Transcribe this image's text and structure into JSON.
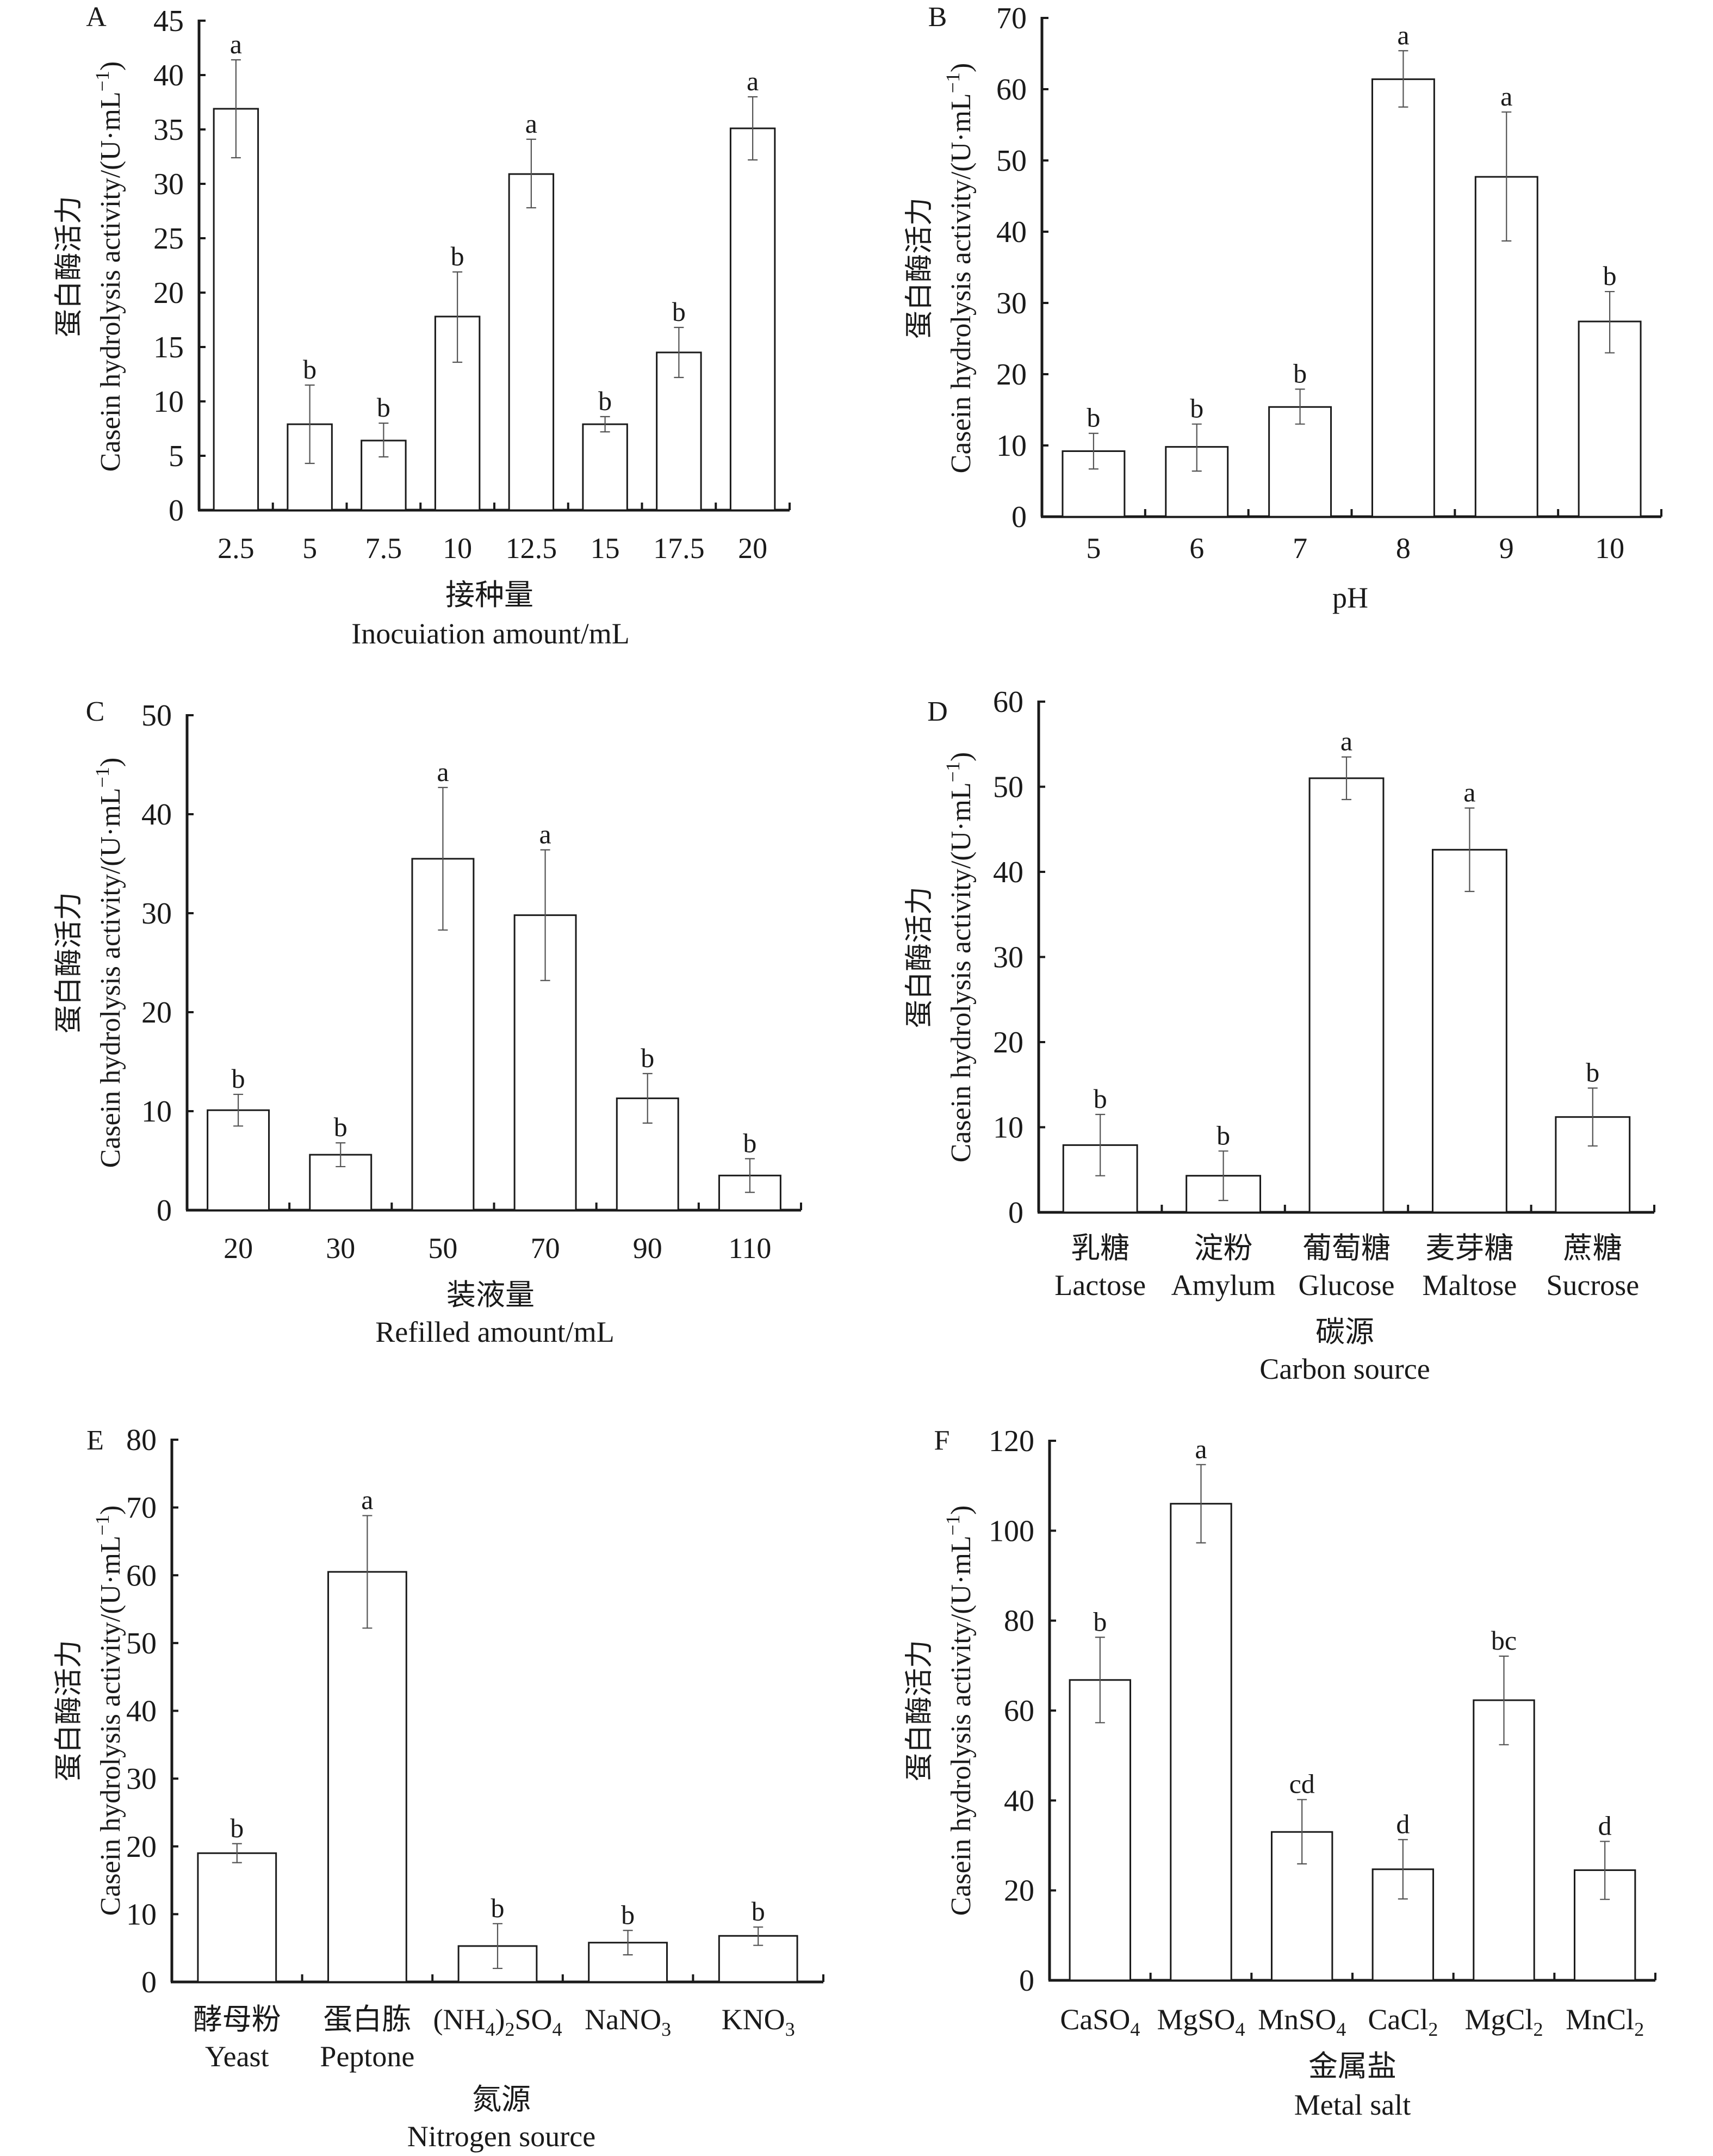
{
  "figure": {
    "y_title_cn": "蛋白酶活力",
    "y_title_en": "Casein hydrolysis activity/(U·mL",
    "y_title_sup": "−1",
    "y_title_close": ")"
  },
  "chart_data": [
    {
      "type": "bar",
      "panel": "A",
      "title": "",
      "xlabel_cn": "接种量",
      "xlabel": "Inocuiation amount/mL",
      "ylabel": "蛋白酶活力 Casein hydrolysis activity/(U·mL⁻¹)",
      "categories": [
        {
          "cn": "",
          "en": "2.5"
        },
        {
          "cn": "",
          "en": "5"
        },
        {
          "cn": "",
          "en": "7.5"
        },
        {
          "cn": "",
          "en": "10"
        },
        {
          "cn": "",
          "en": "12.5"
        },
        {
          "cn": "",
          "en": "15"
        },
        {
          "cn": "",
          "en": "17.5"
        },
        {
          "cn": "",
          "en": "20"
        }
      ],
      "values": [
        36.9,
        7.9,
        6.4,
        17.8,
        30.9,
        7.9,
        14.5,
        35.1
      ],
      "error_low": [
        32.4,
        4.3,
        4.9,
        13.6,
        27.8,
        7.2,
        12.2,
        32.2
      ],
      "error_high": [
        41.4,
        11.5,
        8.0,
        21.9,
        34.1,
        8.6,
        16.8,
        38.0
      ],
      "significance": [
        "a",
        "b",
        "b",
        "b",
        "a",
        "b",
        "b",
        "a"
      ],
      "ylim": [
        0,
        45
      ],
      "yticks": [
        "0",
        "5",
        "10",
        "15",
        "20",
        "25",
        "30",
        "35",
        "40",
        "45"
      ],
      "ytick_values": [
        0,
        5,
        10,
        15,
        20,
        25,
        30,
        35,
        40,
        45
      ],
      "grid": false
    },
    {
      "type": "bar",
      "panel": "B",
      "title": "",
      "xlabel_cn": "",
      "xlabel": "pH",
      "ylabel": "蛋白酶活力 Casein hydrolysis activity/(U·mL⁻¹)",
      "categories": [
        {
          "cn": "",
          "en": "5"
        },
        {
          "cn": "",
          "en": "6"
        },
        {
          "cn": "",
          "en": "7"
        },
        {
          "cn": "",
          "en": "8"
        },
        {
          "cn": "",
          "en": "9"
        },
        {
          "cn": "",
          "en": "10"
        }
      ],
      "values": [
        9.2,
        9.8,
        15.4,
        61.4,
        47.7,
        27.4
      ],
      "error_low": [
        6.7,
        6.4,
        13.0,
        57.5,
        38.7,
        23.0
      ],
      "error_high": [
        11.7,
        13.0,
        17.9,
        65.4,
        56.8,
        31.6
      ],
      "significance": [
        "b",
        "b",
        "b",
        "a",
        "a",
        "b"
      ],
      "ylim": [
        0,
        70
      ],
      "yticks": [
        "0",
        "10",
        "20",
        "30",
        "40",
        "50",
        "60",
        "70"
      ],
      "ytick_values": [
        0,
        10,
        20,
        30,
        40,
        50,
        60,
        70
      ],
      "grid": false
    },
    {
      "type": "bar",
      "panel": "C",
      "title": "",
      "xlabel_cn": "装液量",
      "xlabel": "Refilled amount/mL",
      "ylabel": "蛋白酶活力 Casein hydrolysis activity/(U·mL⁻¹)",
      "categories": [
        {
          "cn": "",
          "en": "20"
        },
        {
          "cn": "",
          "en": "30"
        },
        {
          "cn": "",
          "en": "50"
        },
        {
          "cn": "",
          "en": "70"
        },
        {
          "cn": "",
          "en": "90"
        },
        {
          "cn": "",
          "en": "110"
        }
      ],
      "values": [
        10.1,
        5.6,
        35.5,
        29.8,
        11.3,
        3.5
      ],
      "error_low": [
        8.5,
        4.4,
        28.3,
        23.2,
        8.8,
        1.8
      ],
      "error_high": [
        11.7,
        6.8,
        42.7,
        36.4,
        13.8,
        5.2
      ],
      "significance": [
        "b",
        "b",
        "a",
        "a",
        "b",
        "b"
      ],
      "ylim": [
        0,
        50
      ],
      "yticks": [
        "0",
        "10",
        "20",
        "30",
        "40",
        "50"
      ],
      "ytick_values": [
        0,
        10,
        20,
        30,
        40,
        50
      ],
      "grid": false
    },
    {
      "type": "bar",
      "panel": "D",
      "title": "",
      "xlabel_cn": "碳源",
      "xlabel": "Carbon source",
      "ylabel": "蛋白酶活力 Casein hydrolysis activity/(U·mL⁻¹)",
      "categories": [
        {
          "cn": "乳糖",
          "en": "Lactose"
        },
        {
          "cn": "淀粉",
          "en": "Amylum"
        },
        {
          "cn": "葡萄糖",
          "en": "Glucose"
        },
        {
          "cn": "麦芽糖",
          "en": "Maltose"
        },
        {
          "cn": "蔗糖",
          "en": "Sucrose"
        }
      ],
      "values": [
        7.9,
        4.3,
        51.0,
        42.6,
        11.2
      ],
      "error_low": [
        4.3,
        1.4,
        48.5,
        37.7,
        7.8
      ],
      "error_high": [
        11.5,
        7.2,
        53.5,
        47.5,
        14.6
      ],
      "significance": [
        "b",
        "b",
        "a",
        "a",
        "b"
      ],
      "ylim": [
        0,
        60
      ],
      "yticks": [
        "0",
        "10",
        "20",
        "30",
        "40",
        "50",
        "60"
      ],
      "ytick_values": [
        0,
        10,
        20,
        30,
        40,
        50,
        60
      ],
      "grid": false
    },
    {
      "type": "bar",
      "panel": "E",
      "title": "",
      "xlabel_cn": "氮源",
      "xlabel": "Nitrogen source",
      "ylabel": "蛋白酶活力 Casein hydrolysis activity/(U·mL⁻¹)",
      "categories": [
        {
          "cn": "酵母粉",
          "en": "Yeast"
        },
        {
          "cn": "蛋白胨",
          "en": "Peptone"
        },
        {
          "cn": "",
          "en": "(NH4)2SO4",
          "formula": [
            [
              "(NH",
              ""
            ],
            [
              "4",
              "sub"
            ],
            [
              ")",
              ""
            ],
            [
              "2",
              "sub"
            ],
            [
              "SO",
              ""
            ],
            [
              "4",
              "sub"
            ]
          ]
        },
        {
          "cn": "",
          "en": "NaNO3",
          "formula": [
            [
              "NaNO",
              ""
            ],
            [
              "3",
              "sub"
            ]
          ]
        },
        {
          "cn": "",
          "en": "KNO3",
          "formula": [
            [
              "KNO",
              ""
            ],
            [
              "3",
              "sub"
            ]
          ]
        }
      ],
      "values": [
        19.0,
        60.5,
        5.3,
        5.8,
        6.8
      ],
      "error_low": [
        17.6,
        52.2,
        2.0,
        4.0,
        5.4
      ],
      "error_high": [
        20.4,
        68.8,
        8.6,
        7.6,
        8.1
      ],
      "significance": [
        "b",
        "a",
        "b",
        "b",
        "b"
      ],
      "ylim": [
        0,
        80
      ],
      "yticks": [
        "0",
        "10",
        "20",
        "30",
        "40",
        "50",
        "60",
        "70",
        "80"
      ],
      "ytick_values": [
        0,
        10,
        20,
        30,
        40,
        50,
        60,
        70,
        80
      ],
      "grid": false
    },
    {
      "type": "bar",
      "panel": "F",
      "title": "",
      "xlabel_cn": "金属盐",
      "xlabel": "Metal salt",
      "ylabel": "蛋白酶活力 Casein hydrolysis activity/(U·mL⁻¹)",
      "categories": [
        {
          "cn": "",
          "en": "CaSO4",
          "formula": [
            [
              "CaSO",
              ""
            ],
            [
              "4",
              "sub"
            ]
          ]
        },
        {
          "cn": "",
          "en": "MgSO4",
          "formula": [
            [
              "MgSO",
              ""
            ],
            [
              "4",
              "sub"
            ]
          ]
        },
        {
          "cn": "",
          "en": "MnSO4",
          "formula": [
            [
              "MnSO",
              ""
            ],
            [
              "4",
              "sub"
            ]
          ]
        },
        {
          "cn": "",
          "en": "CaCl2",
          "formula": [
            [
              "CaCl",
              ""
            ],
            [
              "2",
              "sub"
            ]
          ]
        },
        {
          "cn": "",
          "en": "MgCl2",
          "formula": [
            [
              "MgCl",
              ""
            ],
            [
              "2",
              "sub"
            ]
          ]
        },
        {
          "cn": "",
          "en": "MnCl2",
          "formula": [
            [
              "MnCl",
              ""
            ],
            [
              "2",
              "sub"
            ]
          ]
        }
      ],
      "values": [
        66.8,
        106.0,
        33.0,
        24.7,
        62.3,
        24.5
      ],
      "error_low": [
        57.3,
        97.3,
        25.9,
        18.1,
        52.4,
        18.0
      ],
      "error_high": [
        76.3,
        114.7,
        40.2,
        31.3,
        72.1,
        30.9
      ],
      "significance": [
        "b",
        "a",
        "cd",
        "d",
        "bc",
        "d"
      ],
      "ylim": [
        0,
        120
      ],
      "yticks": [
        "0",
        "20",
        "40",
        "60",
        "80",
        "100",
        "120"
      ],
      "ytick_values": [
        0,
        20,
        40,
        60,
        80,
        100,
        120
      ],
      "grid": false
    }
  ],
  "colors": {
    "bar_fill": "#ffffff",
    "bar_stroke": "#1a1a1a",
    "error_bar": "#555555",
    "text": "#1a1a1a"
  }
}
